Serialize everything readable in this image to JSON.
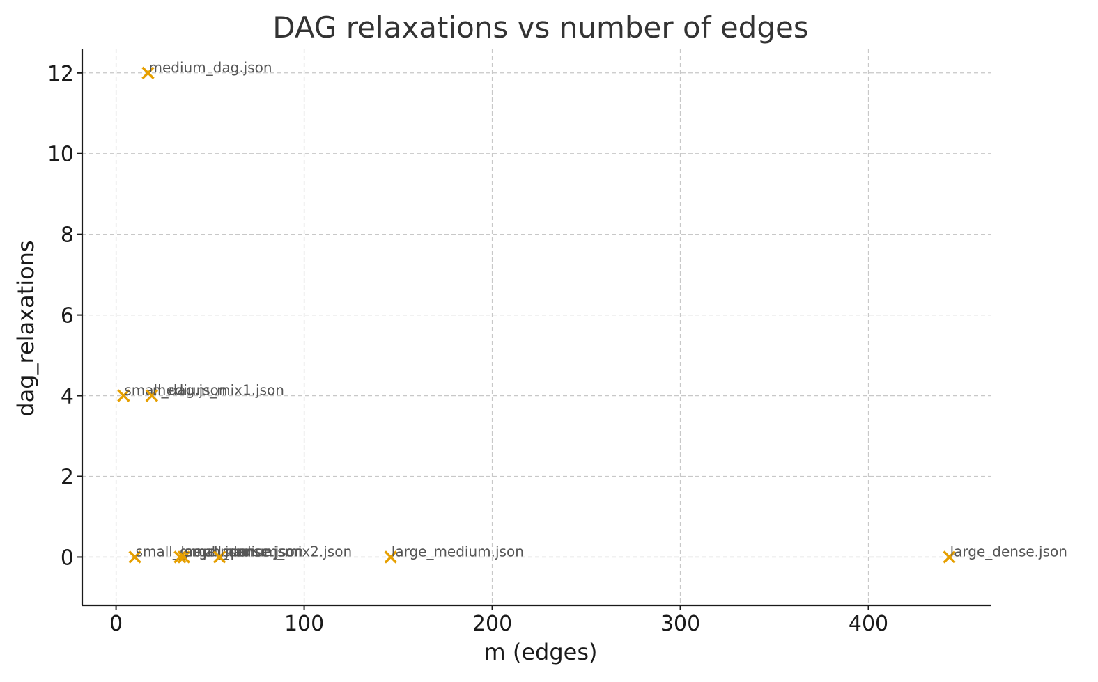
{
  "chart_data": {
    "type": "scatter",
    "title": "DAG relaxations vs number of edges",
    "xlabel": "m (edges)",
    "ylabel": "dag_relaxations",
    "xlim": [
      -18,
      465
    ],
    "ylim": [
      -1.2,
      12.6
    ],
    "xticks": [
      0,
      100,
      200,
      300,
      400
    ],
    "yticks": [
      0,
      2,
      4,
      6,
      8,
      10,
      12
    ],
    "grid": true,
    "marker": "x",
    "marker_color": "#E69F00",
    "points": [
      {
        "label": "medium_dag.json",
        "x": 17,
        "y": 12
      },
      {
        "label": "small_dag.json",
        "x": 4,
        "y": 4
      },
      {
        "label": "medium_mix1.json",
        "x": 19,
        "y": 4
      },
      {
        "label": "small_graph.json",
        "x": 10,
        "y": 0
      },
      {
        "label": "large_sparse.json",
        "x": 34,
        "y": 0
      },
      {
        "label": "small_dense.json",
        "x": 36,
        "y": 0
      },
      {
        "label": "medium_mix2.json",
        "x": 55,
        "y": 0
      },
      {
        "label": "large_medium.json",
        "x": 146,
        "y": 0
      },
      {
        "label": "large_dense.json",
        "x": 443,
        "y": 0
      }
    ]
  }
}
